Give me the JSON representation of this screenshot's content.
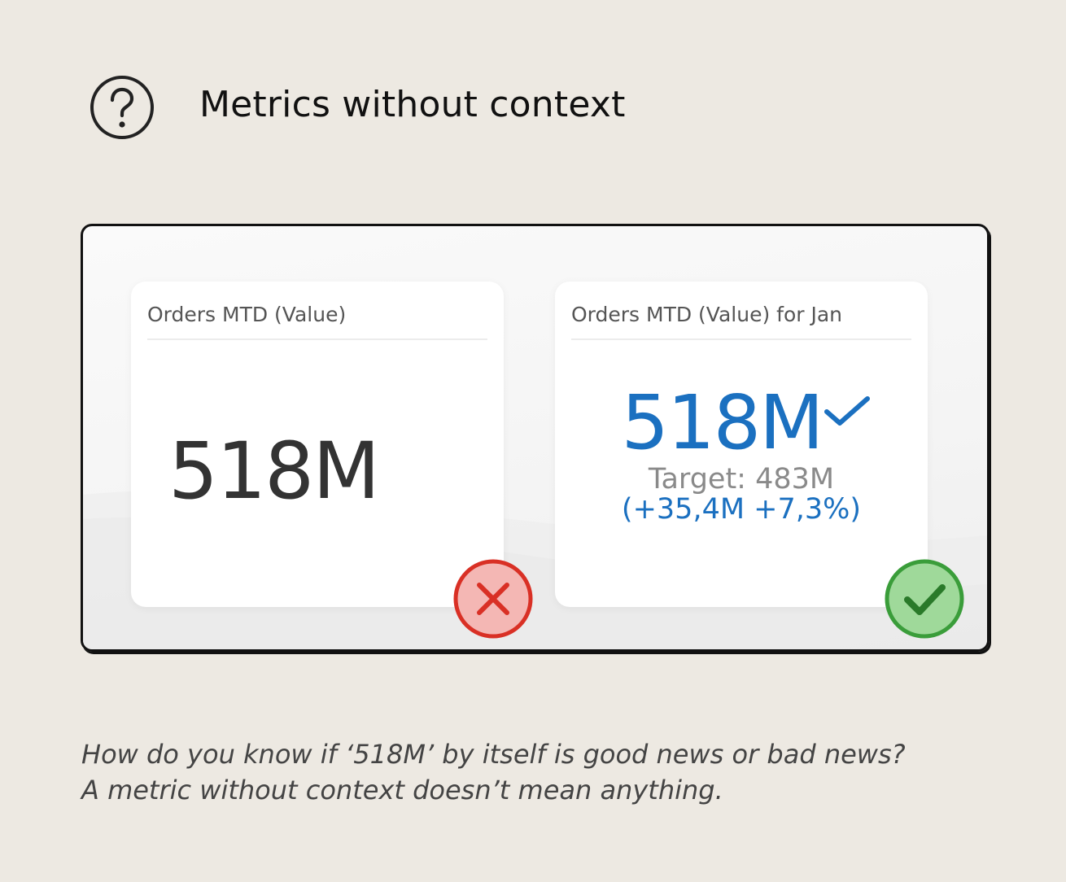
{
  "header": {
    "icon": "question-circle-icon",
    "title": "Metrics without context"
  },
  "cards": {
    "without_context": {
      "title": "Orders MTD (Value)",
      "value": "518M",
      "badge_icon": "cross-circle-icon",
      "badge_color": "#d93025"
    },
    "with_context": {
      "title": "Orders MTD (Value) for Jan",
      "value": "518M",
      "status_icon": "checkmark-icon",
      "target": "Target: 483M",
      "variance": "(+35,4M +7,3%)",
      "accent_color": "#1b70c0",
      "badge_icon": "check-circle-icon",
      "badge_color": "#3a9d3a"
    }
  },
  "caption": {
    "line1": "How do you know if ‘518M’ by itself is good news or bad news?",
    "line2": "A metric without context doesn’t mean anything."
  }
}
